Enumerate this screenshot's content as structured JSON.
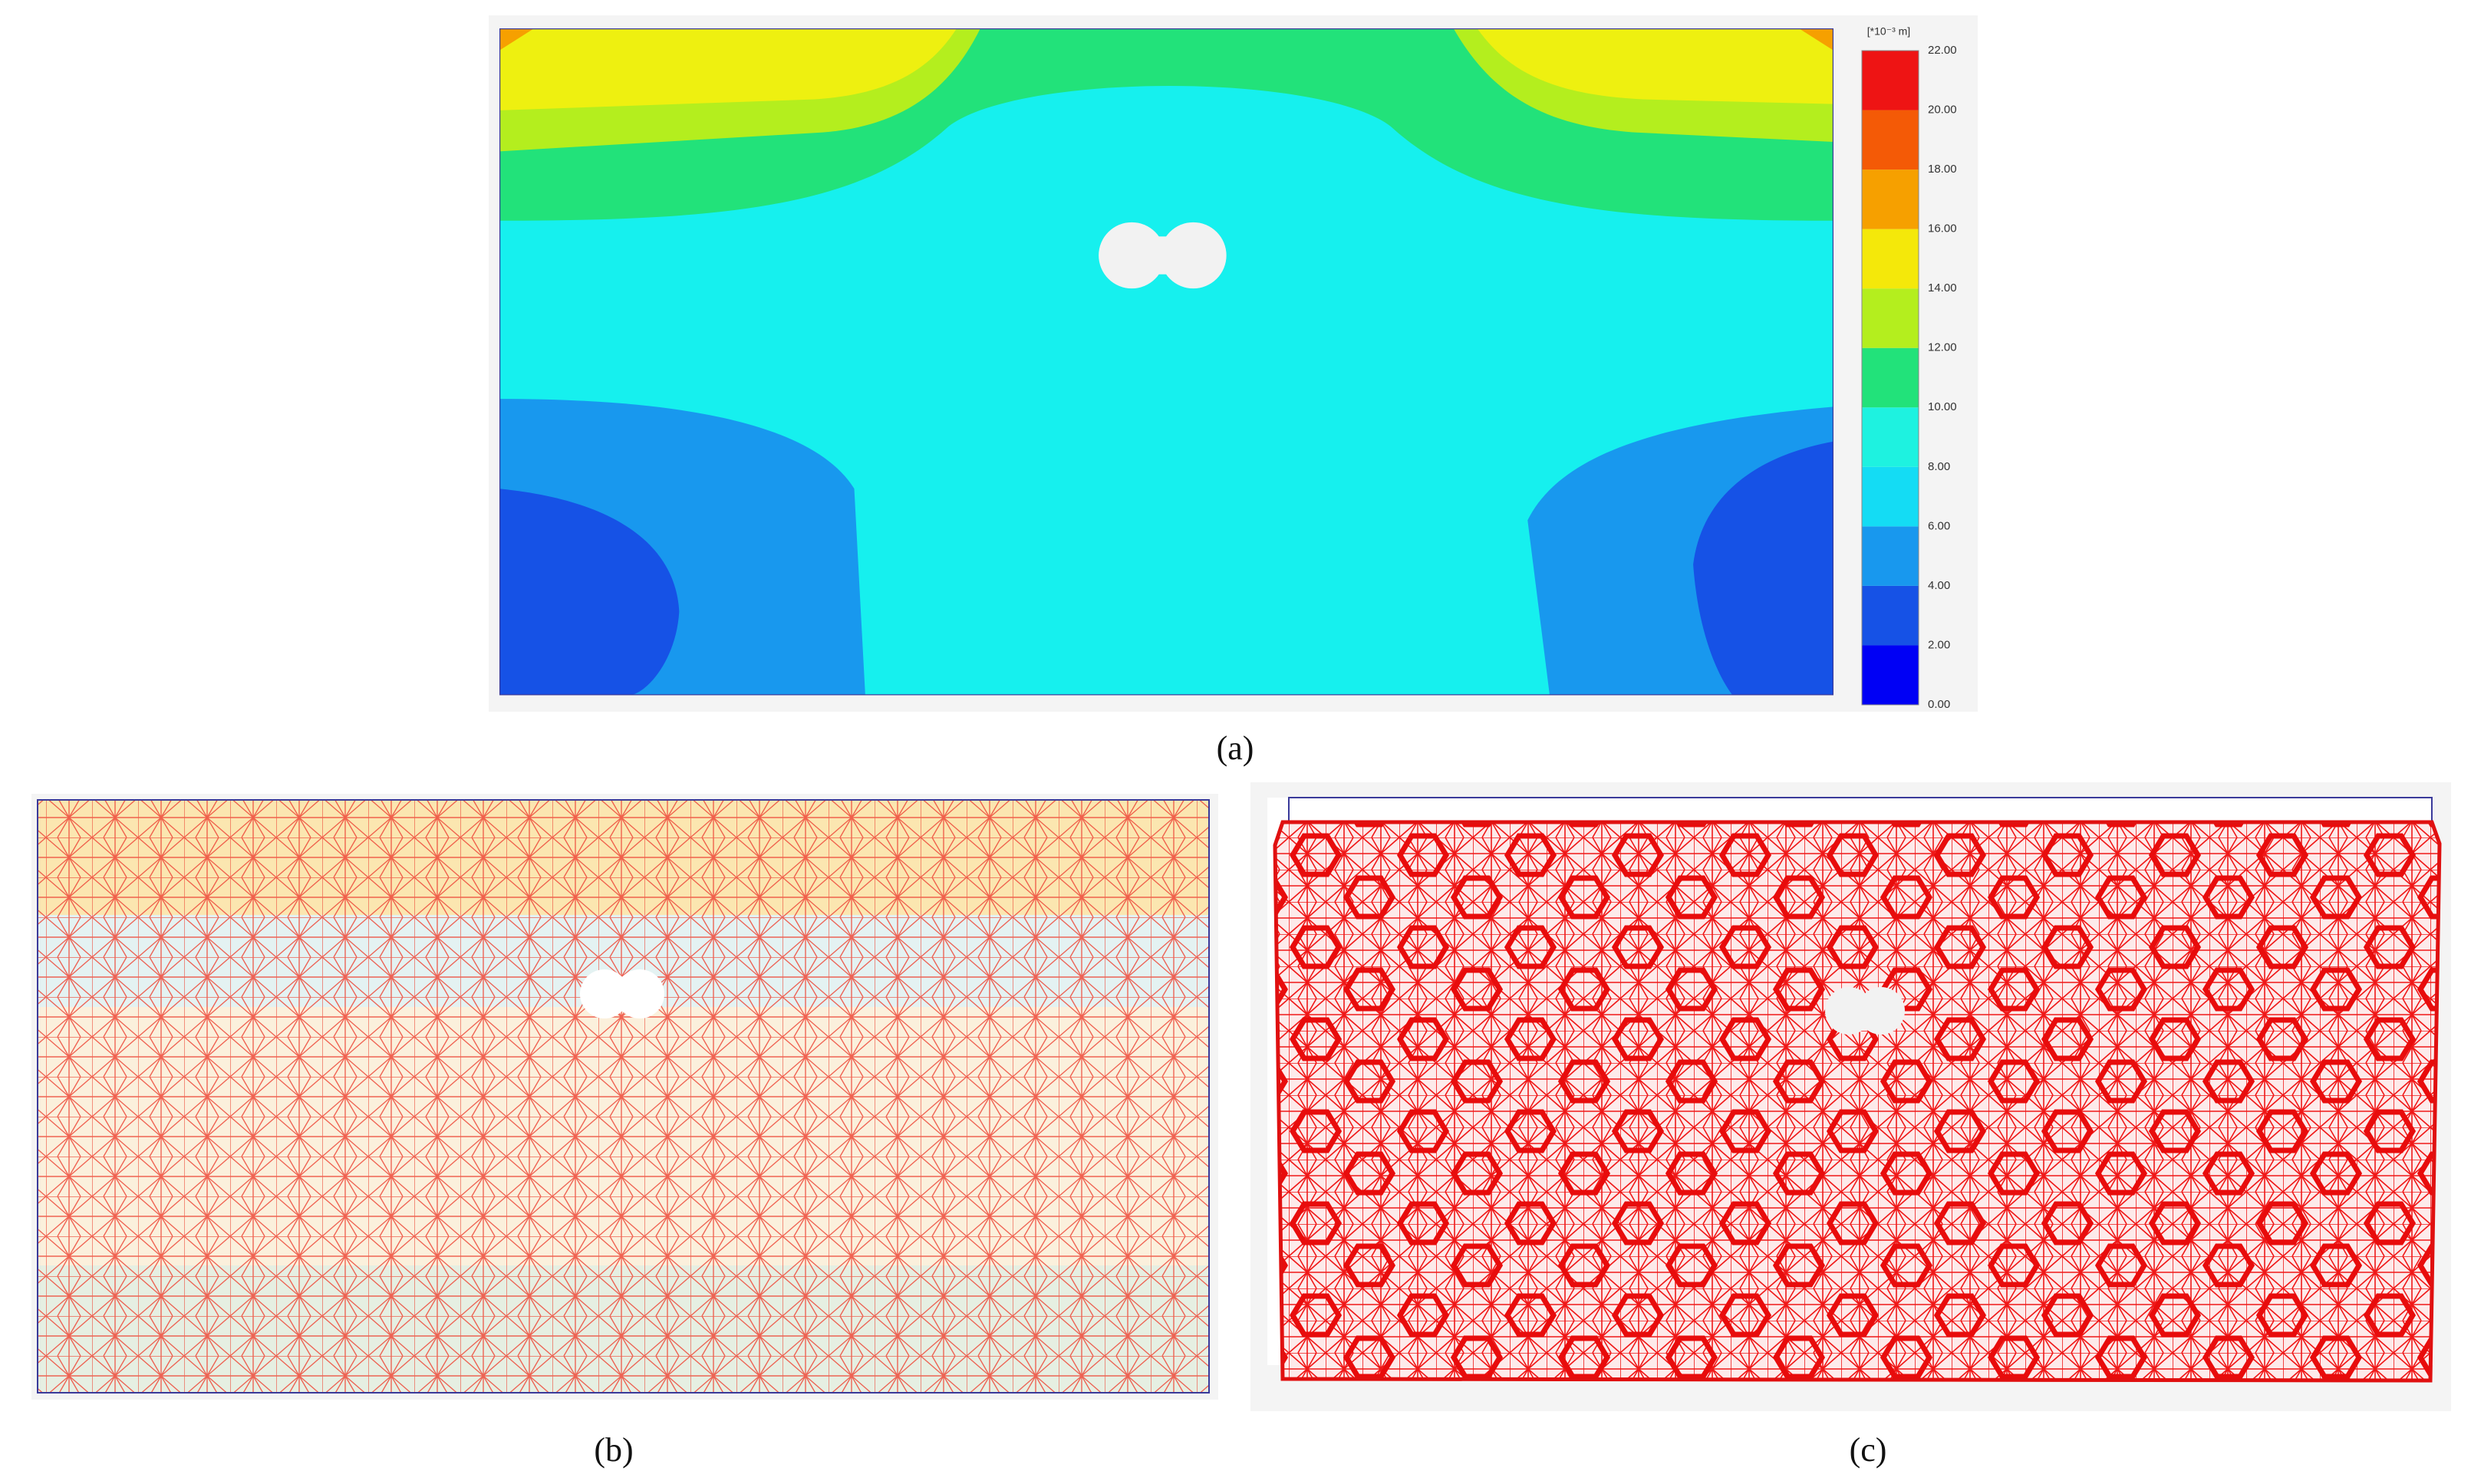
{
  "panels": {
    "a": {
      "caption": "(a)",
      "colorbar": {
        "unit": "[*10⁻³ m]",
        "ticks": [
          "0.00",
          "2.00",
          "4.00",
          "6.00",
          "8.00",
          "10.00",
          "12.00",
          "14.00",
          "16.00",
          "18.00",
          "20.00",
          "22.00"
        ],
        "colors": [
          "#0000f5",
          "#1652e6",
          "#1898ee",
          "#14dcf4",
          "#1ef2e0",
          "#22e27a",
          "#b4ee1e",
          "#f4e80a",
          "#f6a000",
          "#f45a06",
          "#ee1414"
        ]
      }
    },
    "b": {
      "caption": "(b)"
    },
    "c": {
      "caption": "(c)"
    }
  }
}
